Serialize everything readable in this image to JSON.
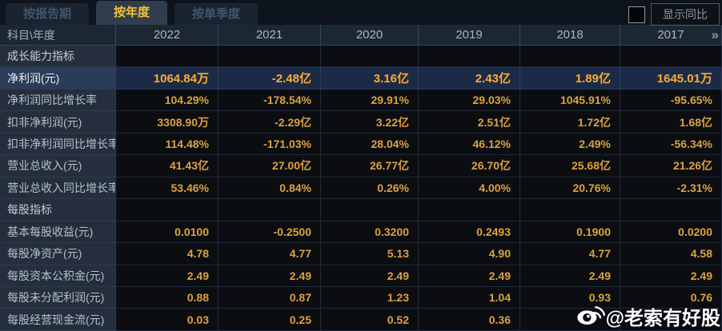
{
  "tabs": [
    {
      "label": "按报告期",
      "active": false
    },
    {
      "label": "按年度",
      "active": true
    },
    {
      "label": "按单季度",
      "active": false
    }
  ],
  "controls": {
    "show_yoy_label": "显示同比",
    "show_yoy_checked": false
  },
  "table": {
    "corner_label": "科目\\年度",
    "years": [
      "2022",
      "2021",
      "2020",
      "2019",
      "2018",
      "2017"
    ],
    "more_icon": "»",
    "rows": [
      {
        "type": "section",
        "label": "成长能力指标",
        "values": []
      },
      {
        "type": "highlight",
        "label": "净利润(元)",
        "values": [
          "1064.84万",
          "-2.48亿",
          "3.16亿",
          "2.43亿",
          "1.89亿",
          "1645.01万"
        ]
      },
      {
        "type": "normal",
        "label": "净利润同比增长率",
        "values": [
          "104.29%",
          "-178.54%",
          "29.91%",
          "29.03%",
          "1045.91%",
          "-95.65%"
        ]
      },
      {
        "type": "normal",
        "label": "扣非净利润(元)",
        "values": [
          "3308.90万",
          "-2.29亿",
          "3.22亿",
          "2.51亿",
          "1.72亿",
          "1.68亿"
        ]
      },
      {
        "type": "normal",
        "label": "扣非净利润同比增长率",
        "values": [
          "114.48%",
          "-171.03%",
          "28.04%",
          "46.12%",
          "2.49%",
          "-56.34%"
        ]
      },
      {
        "type": "normal",
        "label": "营业总收入(元)",
        "values": [
          "41.43亿",
          "27.00亿",
          "26.77亿",
          "26.70亿",
          "25.68亿",
          "21.26亿"
        ]
      },
      {
        "type": "normal",
        "label": "营业总收入同比增长率",
        "values": [
          "53.46%",
          "0.84%",
          "0.26%",
          "4.00%",
          "20.76%",
          "-2.31%"
        ]
      },
      {
        "type": "section",
        "label": "每股指标",
        "values": []
      },
      {
        "type": "normal",
        "label": "基本每股收益(元)",
        "values": [
          "0.0100",
          "-0.2500",
          "0.3200",
          "0.2493",
          "0.1900",
          "0.0200"
        ]
      },
      {
        "type": "normal",
        "label": "每股净资产(元)",
        "values": [
          "4.78",
          "4.77",
          "5.13",
          "4.90",
          "4.77",
          "4.58"
        ]
      },
      {
        "type": "normal",
        "label": "每股资本公积金(元)",
        "values": [
          "2.49",
          "2.49",
          "2.49",
          "2.49",
          "2.49",
          "2.49"
        ]
      },
      {
        "type": "normal",
        "label": "每股未分配利润(元)",
        "values": [
          "0.88",
          "0.87",
          "1.23",
          "1.04",
          "0.93",
          "0.76"
        ]
      },
      {
        "type": "normal",
        "label": "每股经营现金流(元)",
        "values": [
          "0.03",
          "0.25",
          "0.52",
          "0.36",
          "",
          ""
        ]
      }
    ]
  },
  "watermark": {
    "logo": "weibo-icon",
    "text": "@老索有好股"
  },
  "colors": {
    "tab_active_text": "#f5c431",
    "value_text": "#dda23f",
    "highlight_value_text": "#ffab2f",
    "highlight_row_bg": "#1b2b47",
    "label_cell_bg": "#242e3c",
    "header_bg": "#1c2734"
  }
}
